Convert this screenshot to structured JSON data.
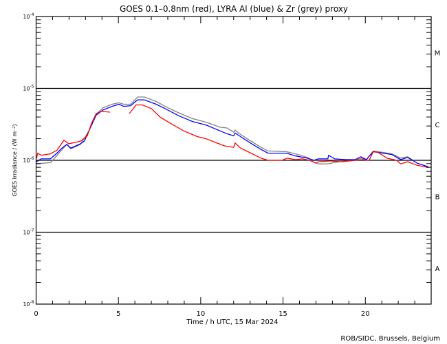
{
  "chart_data": {
    "type": "line",
    "title": "GOES 0.1–0.8nm (red), LYRA Al (blue) & Zr (grey) proxy",
    "xlabel": "Time / h UTC, 15 Mar 2024",
    "ylabel": "GOES Irradiance / (W m⁻²)",
    "xlim": [
      0,
      24
    ],
    "ylim_log10": [
      -8,
      -4
    ],
    "yscale": "log",
    "x_ticks": [
      0,
      5,
      10,
      15,
      20
    ],
    "y_ticks": [
      {
        "exp": -4,
        "base": "10",
        "sup": "-4"
      },
      {
        "exp": -5,
        "base": "10",
        "sup": "-5"
      },
      {
        "exp": -6,
        "base": "10",
        "sup": "-6"
      },
      {
        "exp": -7,
        "base": "10",
        "sup": "-7"
      },
      {
        "exp": -8,
        "base": "10",
        "sup": "-8"
      }
    ],
    "reference_lines_log10": [
      -5,
      -6,
      -7
    ],
    "flare_classes": [
      {
        "label": "M",
        "log10": -4.5
      },
      {
        "label": "C",
        "log10": -5.5
      },
      {
        "label": "B",
        "log10": -6.5
      },
      {
        "label": "A",
        "log10": -7.5
      }
    ],
    "series": [
      {
        "name": "LYRA Zr proxy",
        "color": "#808080",
        "x_hours": [
          0.02,
          0.9,
          1.27,
          1.86,
          2.11,
          2.69,
          3.24,
          3.65,
          4.07,
          4.61,
          5.03,
          5.32,
          5.74,
          6.16,
          6.58,
          7.29,
          7.83,
          8.66,
          9.5,
          10.33,
          11.17,
          11.59,
          12.0,
          12.09,
          12.42,
          12.96,
          13.67,
          14.09,
          15.22,
          15.76,
          16.47,
          16.89,
          17.14,
          17.72,
          18.14,
          18.81,
          19.39,
          19.73,
          20.06,
          20.48,
          21.07,
          21.61,
          22.15,
          22.57,
          23.15,
          23.82
        ],
        "log10_flux": [
          -6.05,
          -6.03,
          -5.93,
          -5.78,
          -5.84,
          -5.78,
          -5.58,
          -5.36,
          -5.27,
          -5.22,
          -5.2,
          -5.22,
          -5.22,
          -5.12,
          -5.12,
          -5.18,
          -5.25,
          -5.34,
          -5.42,
          -5.47,
          -5.54,
          -5.55,
          -5.61,
          -5.58,
          -5.64,
          -5.72,
          -5.82,
          -5.87,
          -5.88,
          -5.91,
          -5.96,
          -6.03,
          -6.05,
          -6.05,
          -6.03,
          -6.01,
          -6.0,
          -5.97,
          -5.99,
          -5.87,
          -5.89,
          -5.91,
          -5.97,
          -5.95,
          -6.04,
          -6.09
        ]
      },
      {
        "name": "LYRA Al proxy",
        "color": "#0000ff",
        "x_hours": [
          0.02,
          0.31,
          0.86,
          1.27,
          1.57,
          1.86,
          2.11,
          2.69,
          2.94,
          3.24,
          3.65,
          4.07,
          4.61,
          5.03,
          5.32,
          5.74,
          6.16,
          6.58,
          7.29,
          7.83,
          8.66,
          9.5,
          10.33,
          11.17,
          11.59,
          12.0,
          12.09,
          12.42,
          12.96,
          13.67,
          14.09,
          15.22,
          15.76,
          16.47,
          16.89,
          17.14,
          17.72,
          17.77,
          18.14,
          18.81,
          19.39,
          19.73,
          20.06,
          20.48,
          21.07,
          21.61,
          22.15,
          22.57,
          23.15,
          23.82
        ],
        "log10_flux": [
          -6.02,
          -5.98,
          -5.98,
          -5.9,
          -5.83,
          -5.78,
          -5.83,
          -5.77,
          -5.73,
          -5.57,
          -5.37,
          -5.3,
          -5.25,
          -5.22,
          -5.25,
          -5.24,
          -5.16,
          -5.16,
          -5.22,
          -5.28,
          -5.38,
          -5.46,
          -5.51,
          -5.59,
          -5.63,
          -5.66,
          -5.62,
          -5.67,
          -5.75,
          -5.85,
          -5.9,
          -5.9,
          -5.94,
          -5.97,
          -6.0,
          -5.98,
          -5.98,
          -5.93,
          -5.98,
          -5.99,
          -5.99,
          -5.95,
          -5.99,
          -5.88,
          -5.9,
          -5.92,
          -5.99,
          -5.96,
          -6.04,
          -6.09
        ]
      },
      {
        "name": "GOES 0.1-0.8nm",
        "color": "#ff0000",
        "x_hours": [
          0.03,
          0.1,
          0.31,
          0.86,
          1.27,
          1.69,
          1.86,
          1.98,
          2.4,
          2.73,
          3.11,
          3.36,
          3.65,
          3.95,
          4.49,
          null,
          5.66,
          6.08,
          6.45,
          7.0,
          7.54,
          8.12,
          8.96,
          9.79,
          10.33,
          10.88,
          11.46,
          12.0,
          12.09,
          12.42,
          12.96,
          13.67,
          14.09,
          14.93,
          15.26,
          15.76,
          16.18,
          16.6,
          17.01,
          17.14,
          17.85,
          18.56,
          19.39,
          19.81,
          20.23,
          20.48,
          20.77,
          21.32,
          21.9,
          22.15,
          22.57,
          23.15,
          23.82
        ],
        "log10_flux": [
          -5.97,
          -5.9,
          -5.93,
          -5.91,
          -5.86,
          -5.72,
          -5.75,
          -5.77,
          -5.75,
          -5.73,
          -5.66,
          -5.49,
          -5.35,
          -5.32,
          -5.33,
          null,
          -5.35,
          -5.23,
          -5.23,
          -5.28,
          -5.4,
          -5.48,
          -5.59,
          -5.67,
          -5.7,
          -5.75,
          -5.8,
          -5.82,
          -5.76,
          -5.83,
          -5.89,
          -5.97,
          -6.0,
          -6.0,
          -5.97,
          -5.99,
          -5.98,
          -6.0,
          -6.04,
          -6.02,
          -6.01,
          -6.02,
          -6.0,
          -5.99,
          -6.0,
          -5.88,
          -5.89,
          -5.97,
          -6.0,
          -6.05,
          -6.02,
          -6.07,
          -6.1
        ]
      }
    ],
    "credit": "ROB/SIDC, Brussels, Belgium"
  }
}
